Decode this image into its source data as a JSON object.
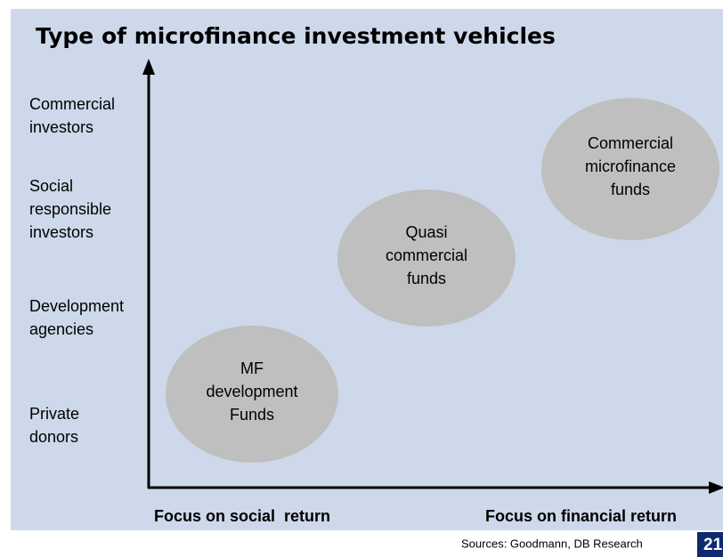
{
  "title": "Type of microfinance investment vehicles",
  "y_axis": {
    "labels": [
      [
        "Commercial",
        "investors"
      ],
      [
        "Social",
        "responsible",
        "investors"
      ],
      [
        "Development",
        "agencies"
      ],
      [
        "Private",
        "donors"
      ]
    ]
  },
  "nodes": [
    {
      "label": [
        "MF",
        "development",
        "Funds"
      ]
    },
    {
      "label": [
        "Quasi",
        "commercial",
        "funds"
      ]
    },
    {
      "label": [
        "Commercial",
        "microfinance",
        "funds"
      ]
    }
  ],
  "x_axis": {
    "labels": [
      "Focus on social  return",
      "Focus on financial return"
    ]
  },
  "source": "Sources: Goodmann, DB Research",
  "page_number": "21"
}
